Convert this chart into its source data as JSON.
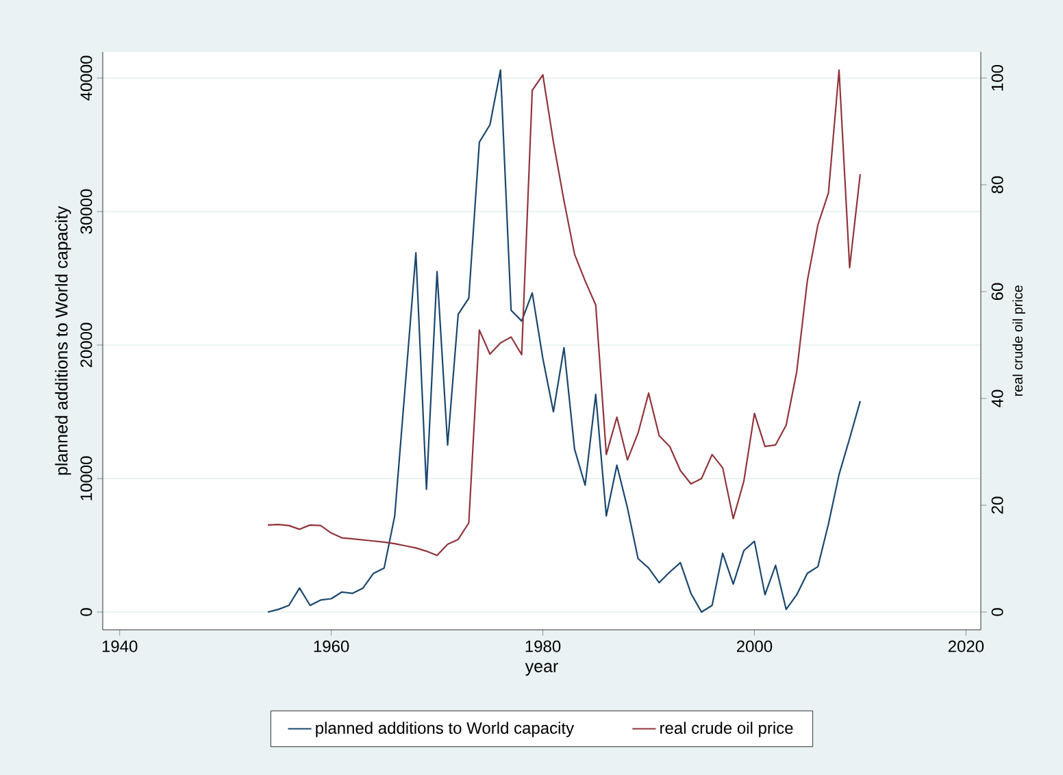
{
  "chart_data": {
    "type": "line",
    "xlabel": "year",
    "ylabel": "planned additions to World capacity",
    "y2label": "real crude oil price",
    "x": [
      1954,
      1955,
      1956,
      1957,
      1958,
      1959,
      1960,
      1961,
      1962,
      1963,
      1964,
      1965,
      1966,
      1967,
      1968,
      1969,
      1970,
      1971,
      1972,
      1973,
      1974,
      1975,
      1976,
      1977,
      1978,
      1979,
      1980,
      1981,
      1982,
      1983,
      1984,
      1985,
      1986,
      1987,
      1988,
      1989,
      1990,
      1991,
      1992,
      1993,
      1994,
      1995,
      1996,
      1997,
      1998,
      1999,
      2000,
      2001,
      2002,
      2003,
      2004,
      2005,
      2006,
      2007,
      2008,
      2009,
      2010
    ],
    "series": [
      {
        "name": "planned additions to World capacity",
        "color": "#1a476f",
        "axis": "y",
        "values": [
          0,
          200,
          500,
          1800,
          500,
          900,
          1000,
          1500,
          1400,
          1800,
          2900,
          3300,
          7200,
          17000,
          26900,
          9200,
          25500,
          12500,
          22300,
          23500,
          35200,
          36500,
          40600,
          22600,
          21800,
          23900,
          19000,
          15000,
          19800,
          12200,
          9500,
          16300,
          7200,
          11000,
          7800,
          4000,
          3300,
          2200,
          3000,
          3700,
          1400,
          0,
          500,
          4400,
          2100,
          4600,
          5300,
          1300,
          3500,
          200,
          1300,
          2900,
          3400,
          6600,
          10300,
          13000,
          15800
        ]
      },
      {
        "name": "real crude oil price",
        "color": "#90353b",
        "axis": "y2",
        "values": [
          16.3,
          16.4,
          16.2,
          15.5,
          16.3,
          16.2,
          14.8,
          13.9,
          13.7,
          13.5,
          13.3,
          13.1,
          12.8,
          12.4,
          12.0,
          11.4,
          10.6,
          12.7,
          13.6,
          16.7,
          52.8,
          48.3,
          50.4,
          51.5,
          48.2,
          97.7,
          100.6,
          88,
          77,
          67,
          62,
          57.5,
          29.5,
          36.5,
          28.5,
          33.5,
          41,
          33,
          31,
          26.5,
          24,
          25,
          29.5,
          27,
          17.5,
          24.5,
          37.2,
          31,
          31.3,
          35,
          45,
          62,
          72.5,
          78.5,
          101.5,
          64.5,
          82
        ]
      }
    ],
    "xlim": [
      1938.4,
      2021.4
    ],
    "ylim": [
      -1330,
      41950
    ],
    "y2lim": [
      -3.3,
      104.9
    ],
    "xticks": [
      1940,
      1960,
      1980,
      2000,
      2020
    ],
    "yticks": [
      0,
      10000,
      20000,
      30000,
      40000
    ],
    "y2ticks": [
      0,
      20,
      40,
      60,
      80,
      100
    ],
    "grid": "y",
    "legend": "bottom"
  }
}
